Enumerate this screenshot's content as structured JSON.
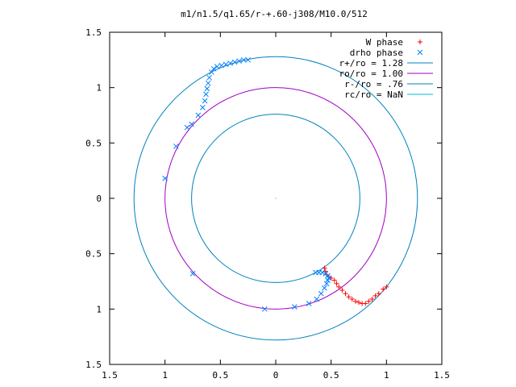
{
  "chart_data": {
    "type": "scatter",
    "title": "m1/n1.5/q1.65/r-+.60-j308/M10.0/512",
    "xlim": [
      -1.5,
      1.5
    ],
    "ylim": [
      -1.5,
      1.5
    ],
    "x_ticks": [
      {
        "value": -1.5,
        "label": "1.5"
      },
      {
        "value": -1,
        "label": "1"
      },
      {
        "value": -0.5,
        "label": "0.5"
      },
      {
        "value": 0,
        "label": "0"
      },
      {
        "value": 0.5,
        "label": "0.5"
      },
      {
        "value": 1,
        "label": "1"
      },
      {
        "value": 1.5,
        "label": "1.5"
      }
    ],
    "y_ticks": [
      {
        "value": 1.5,
        "label": "1.5"
      },
      {
        "value": 1,
        "label": "1"
      },
      {
        "value": 0.5,
        "label": "0.5"
      },
      {
        "value": 0,
        "label": "0"
      },
      {
        "value": -0.5,
        "label": "0.5"
      },
      {
        "value": -1,
        "label": "1"
      },
      {
        "value": -1.5,
        "label": "1.5"
      }
    ],
    "grid": false,
    "legend_position": "top-right",
    "series": [
      {
        "name": "W phase",
        "kind": "points",
        "marker": "plus",
        "color": "#ff0000",
        "points": [
          [
            0.44,
            -0.63
          ],
          [
            0.45,
            -0.66
          ],
          [
            0.46,
            -0.69
          ],
          [
            0.48,
            -0.71
          ],
          [
            0.5,
            -0.72
          ],
          [
            0.53,
            -0.74
          ],
          [
            0.55,
            -0.77
          ],
          [
            0.57,
            -0.8
          ],
          [
            0.6,
            -0.83
          ],
          [
            0.63,
            -0.86
          ],
          [
            0.66,
            -0.89
          ],
          [
            0.69,
            -0.91
          ],
          [
            0.72,
            -0.93
          ],
          [
            0.75,
            -0.94
          ],
          [
            0.78,
            -0.95
          ],
          [
            0.81,
            -0.95
          ],
          [
            0.84,
            -0.93
          ],
          [
            0.87,
            -0.91
          ],
          [
            0.9,
            -0.88
          ],
          [
            0.93,
            -0.86
          ],
          [
            0.97,
            -0.82
          ],
          [
            1.0,
            -0.8
          ]
        ]
      },
      {
        "name": "drho phase",
        "kind": "points",
        "marker": "cross",
        "color": "#0080ff",
        "points": [
          [
            -1.0,
            0.18
          ],
          [
            -0.9,
            0.47
          ],
          [
            -0.8,
            0.64
          ],
          [
            -0.76,
            0.67
          ],
          [
            -0.7,
            0.75
          ],
          [
            -0.66,
            0.82
          ],
          [
            -0.64,
            0.88
          ],
          [
            -0.63,
            0.94
          ],
          [
            -0.62,
            0.99
          ],
          [
            -0.61,
            1.04
          ],
          [
            -0.6,
            1.09
          ],
          [
            -0.58,
            1.14
          ],
          [
            -0.56,
            1.17
          ],
          [
            -0.53,
            1.19
          ],
          [
            -0.49,
            1.2
          ],
          [
            -0.45,
            1.21
          ],
          [
            -0.41,
            1.22
          ],
          [
            -0.37,
            1.23
          ],
          [
            -0.33,
            1.24
          ],
          [
            -0.29,
            1.25
          ],
          [
            -0.25,
            1.25
          ],
          [
            -0.75,
            -0.68
          ],
          [
            -0.1,
            -1.0
          ],
          [
            0.17,
            -0.98
          ],
          [
            0.3,
            -0.95
          ],
          [
            0.37,
            -0.91
          ],
          [
            0.41,
            -0.86
          ],
          [
            0.44,
            -0.81
          ],
          [
            0.46,
            -0.77
          ],
          [
            0.47,
            -0.74
          ],
          [
            0.48,
            -0.72
          ],
          [
            0.47,
            -0.7
          ],
          [
            0.45,
            -0.68
          ],
          [
            0.42,
            -0.67
          ],
          [
            0.39,
            -0.67
          ],
          [
            0.36,
            -0.67
          ]
        ]
      },
      {
        "name": "r+/ro = 1.28",
        "kind": "circle",
        "radius": 1.28,
        "color": "#0080c0"
      },
      {
        "name": "ro/ro = 1.00",
        "kind": "circle",
        "radius": 1.0,
        "color": "#a000c0"
      },
      {
        "name": "r-/ro = .76",
        "kind": "circle",
        "radius": 0.76,
        "color": "#0080c0"
      },
      {
        "name": "rc/ro = NaN",
        "kind": "circle",
        "radius": null,
        "color": "#00c0e0"
      }
    ]
  }
}
